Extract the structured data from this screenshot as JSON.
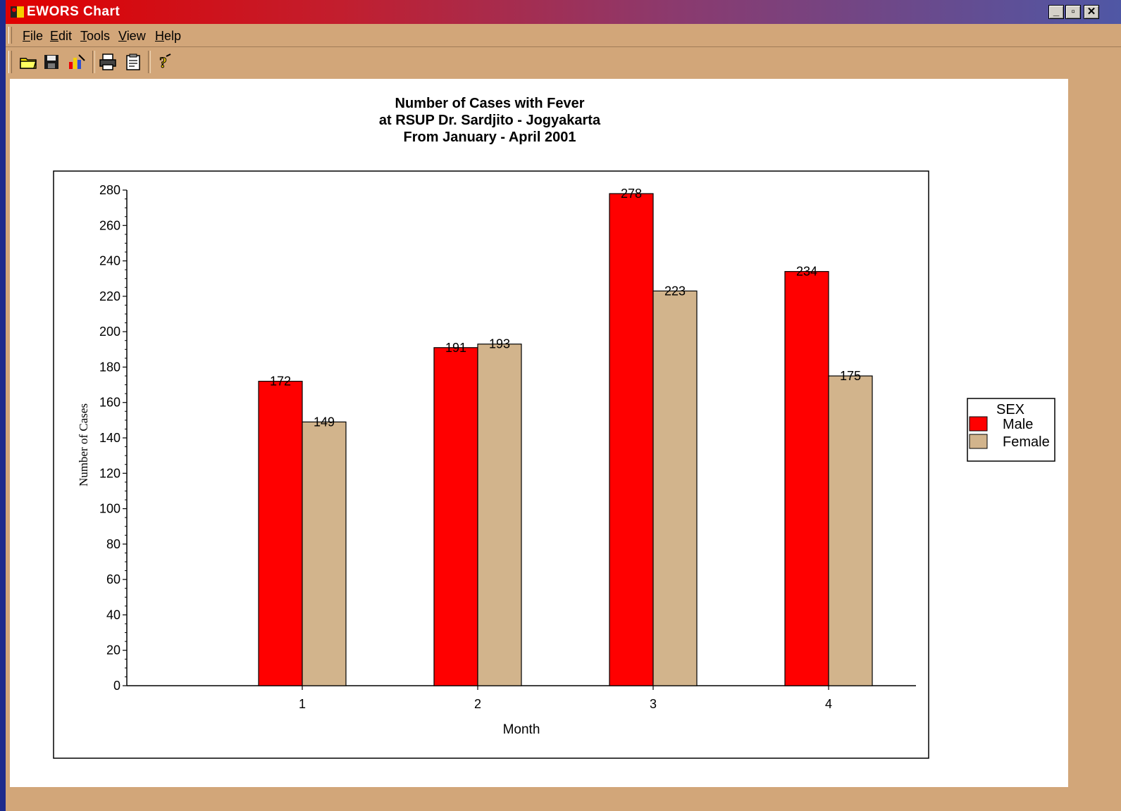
{
  "window": {
    "title": "EWORS Chart",
    "controls": [
      "_",
      "▫",
      "✕"
    ]
  },
  "menu": [
    {
      "key": "F",
      "rest": "ile"
    },
    {
      "key": "E",
      "rest": "dit"
    },
    {
      "key": "T",
      "rest": "ools"
    },
    {
      "key": "V",
      "rest": "iew"
    },
    {
      "key": "H",
      "rest": "elp"
    }
  ],
  "toolbar": {
    "icons": [
      "open-folder-icon",
      "save-disk-icon",
      "chart-wizard-icon",
      "print-icon",
      "clipboard-icon",
      "help-icon"
    ]
  },
  "colors": {
    "male": "#ff0000",
    "female": "#d2b48c",
    "window_bg": "#d2a679"
  },
  "chart_data": {
    "type": "bar",
    "title": [
      "Number of Cases with Fever",
      "at  RSUP Dr. Sardjito - Jogyakarta",
      "From January - April 2001"
    ],
    "xlabel": "Month",
    "ylabel": "Number of Cases",
    "categories": [
      "1",
      "2",
      "3",
      "4"
    ],
    "series": [
      {
        "name": "Male",
        "values": [
          172,
          191,
          278,
          234
        ]
      },
      {
        "name": "Female",
        "values": [
          149,
          193,
          223,
          175
        ]
      }
    ],
    "ylim": [
      0,
      280
    ],
    "yticks": [
      0,
      20,
      40,
      60,
      80,
      100,
      120,
      140,
      160,
      180,
      200,
      220,
      240,
      260,
      280
    ],
    "legend": {
      "title": "SEX",
      "position": "right"
    },
    "grid": false
  }
}
